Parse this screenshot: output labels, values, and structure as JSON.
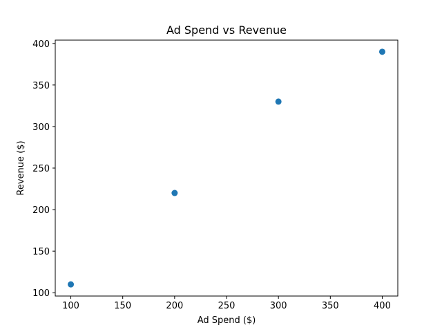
{
  "chart_data": {
    "type": "scatter",
    "title": "Ad Spend vs Revenue",
    "xlabel": "Ad Spend ($)",
    "ylabel": "Revenue ($)",
    "x": [
      100,
      200,
      300,
      400
    ],
    "y": [
      110,
      220,
      330,
      390
    ],
    "xlim": [
      85,
      415
    ],
    "ylim": [
      96,
      404
    ],
    "xticks": [
      100,
      150,
      200,
      250,
      300,
      350,
      400
    ],
    "yticks": [
      100,
      150,
      200,
      250,
      300,
      350,
      400
    ],
    "grid": false,
    "colors": {
      "marker": "#1f77b4"
    }
  }
}
